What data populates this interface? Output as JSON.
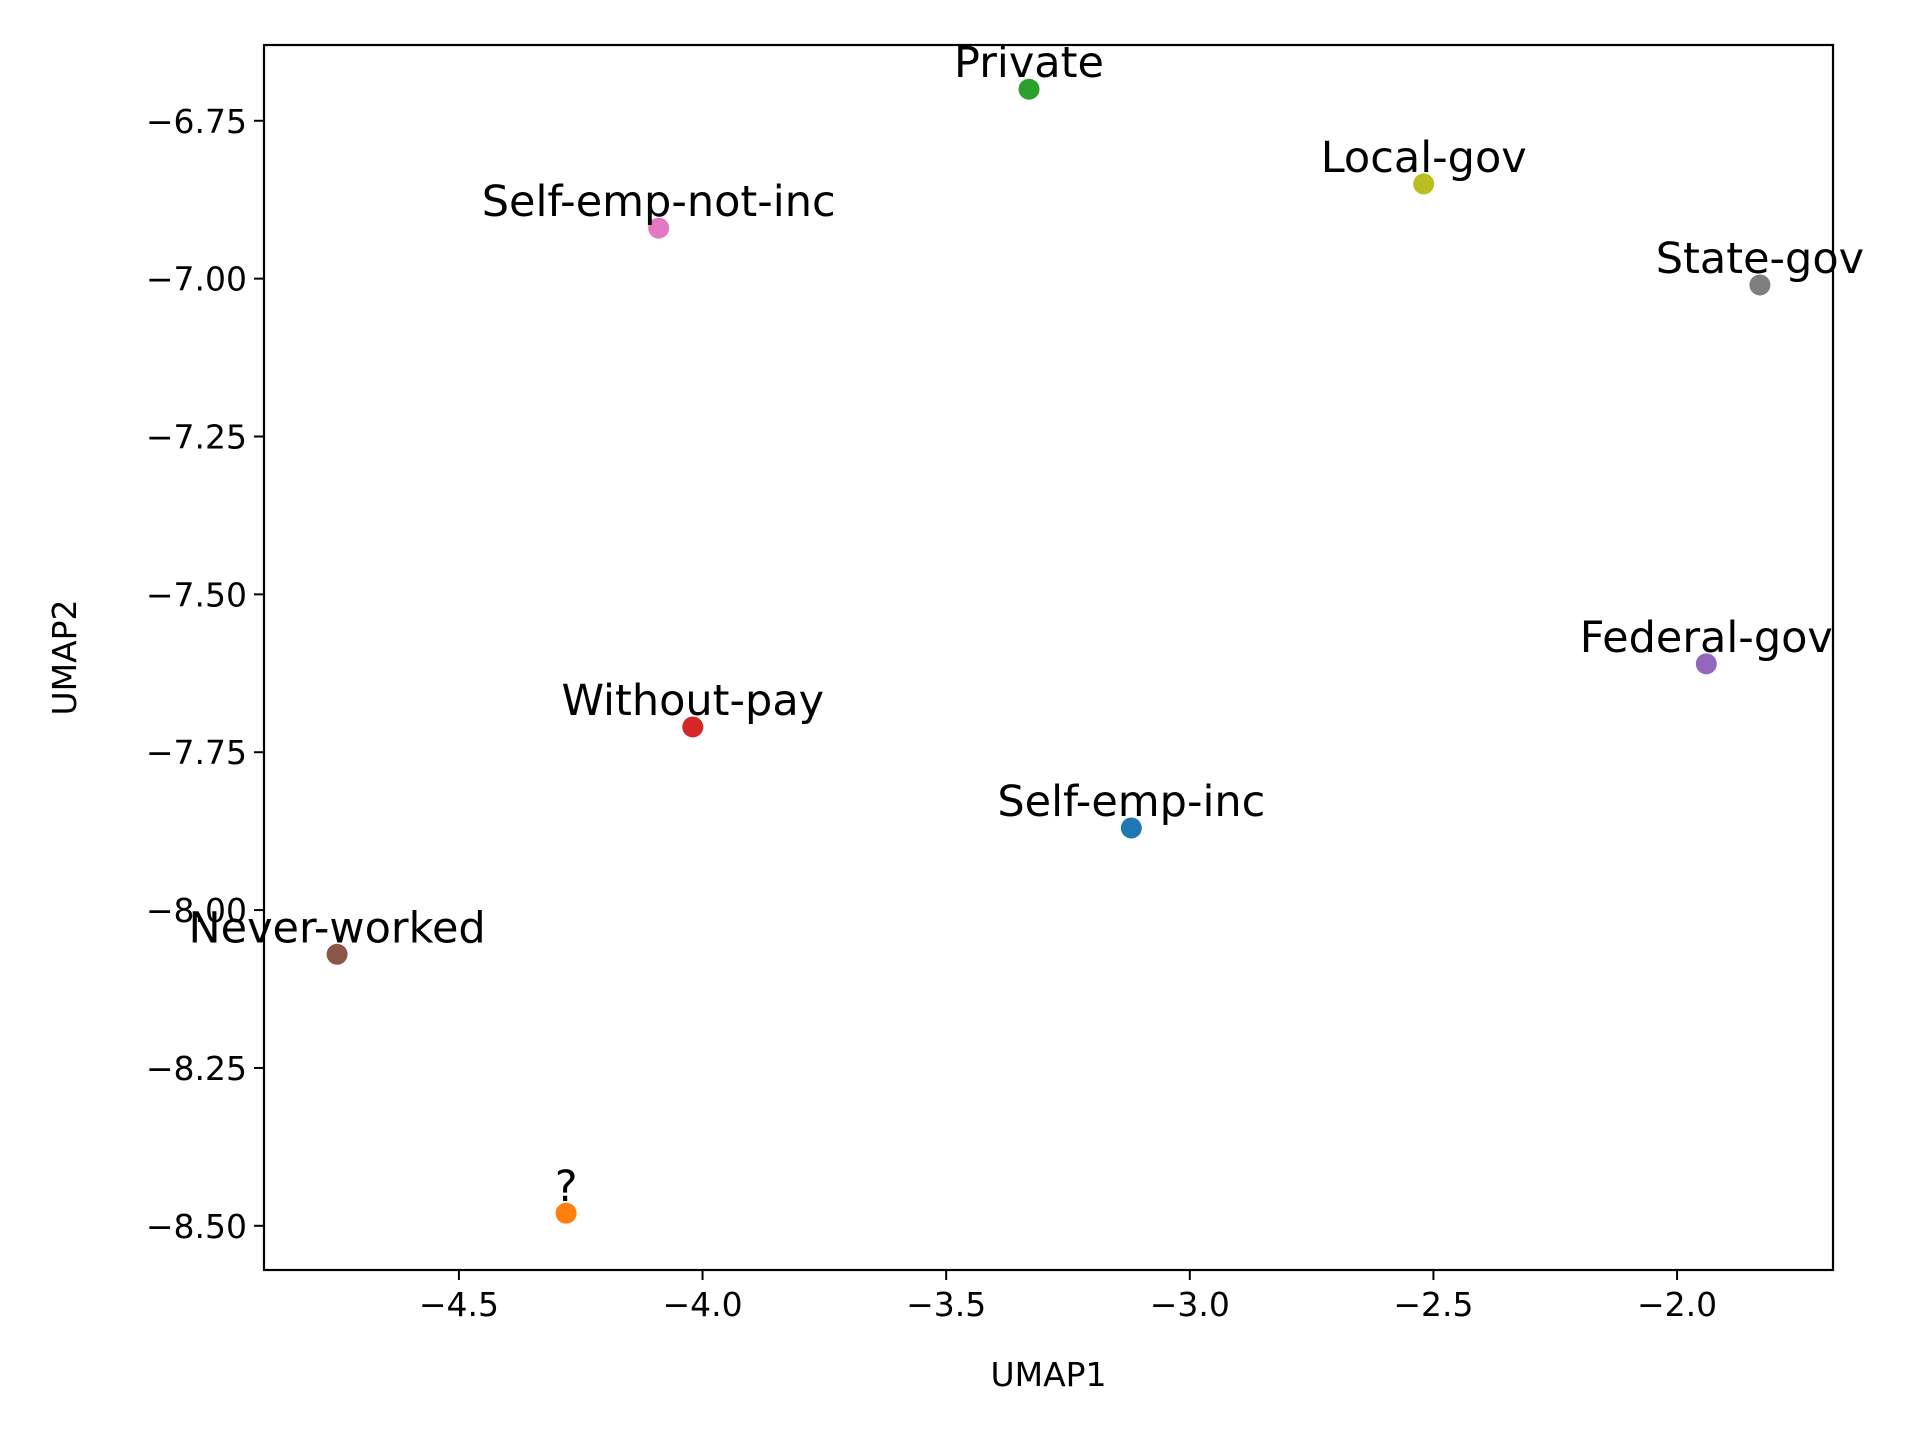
{
  "chart_data": {
    "type": "scatter",
    "title": "",
    "xlabel": "UMAP1",
    "ylabel": "UMAP2",
    "xlim": [
      -4.9,
      -1.68
    ],
    "ylim": [
      -8.57,
      -6.63
    ],
    "xticks": [
      -4.5,
      -4.0,
      -3.5,
      -3.0,
      -2.5,
      -2.0
    ],
    "yticks": [
      -6.75,
      -7.0,
      -7.25,
      -7.5,
      -7.75,
      -8.0,
      -8.25,
      -8.5
    ],
    "xtick_labels": [
      "−4.5",
      "−4.0",
      "−3.5",
      "−3.0",
      "−2.5",
      "−2.0"
    ],
    "ytick_labels": [
      "−6.75",
      "−7.00",
      "−7.25",
      "−7.50",
      "−7.75",
      "−8.00",
      "−8.25",
      "−8.50"
    ],
    "grid": false,
    "points": [
      {
        "label": "Self-emp-inc",
        "x": -3.12,
        "y": -7.87,
        "color": "#1f77b4"
      },
      {
        "label": "?",
        "x": -4.28,
        "y": -8.48,
        "color": "#ff7f0e"
      },
      {
        "label": "Private",
        "x": -3.33,
        "y": -6.7,
        "color": "#2ca02c"
      },
      {
        "label": "Without-pay",
        "x": -4.02,
        "y": -7.71,
        "color": "#d62728"
      },
      {
        "label": "Federal-gov",
        "x": -1.94,
        "y": -7.61,
        "color": "#9467bd"
      },
      {
        "label": "Never-worked",
        "x": -4.75,
        "y": -8.07,
        "color": "#8c564b"
      },
      {
        "label": "Self-emp-not-inc",
        "x": -4.09,
        "y": -6.92,
        "color": "#e377c2"
      },
      {
        "label": "State-gov",
        "x": -1.83,
        "y": -7.01,
        "color": "#7f7f7f"
      },
      {
        "label": "Local-gov",
        "x": -2.52,
        "y": -6.85,
        "color": "#bcbd22"
      }
    ]
  }
}
